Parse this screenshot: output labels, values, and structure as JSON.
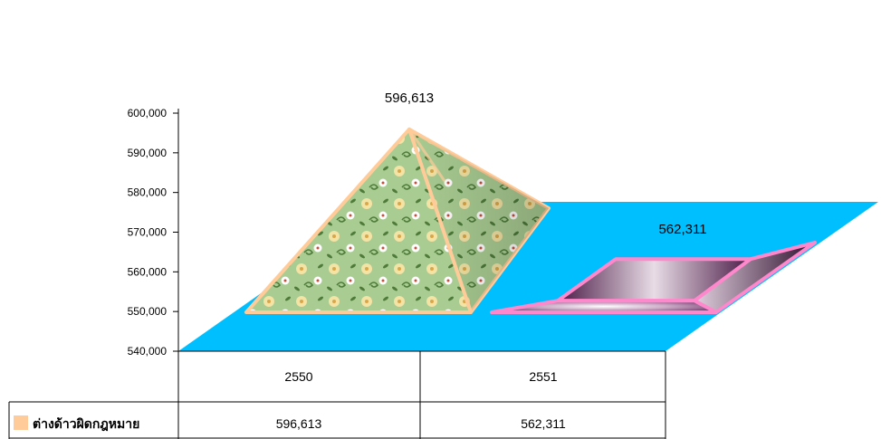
{
  "chart_data": {
    "type": "bar",
    "title": "",
    "xlabel": "",
    "ylabel": "",
    "categories": [
      "2550",
      "2551"
    ],
    "series": [
      {
        "name": "ต่างด้าวผิดกฎหมาย",
        "values": [
          596613,
          562311
        ]
      }
    ],
    "value_labels": [
      "596,613",
      "562,311"
    ],
    "table_values": [
      "596,613",
      "562,311"
    ],
    "ylim": [
      540000,
      600000
    ],
    "yticks": [
      540000,
      550000,
      560000,
      570000,
      580000,
      590000,
      600000
    ],
    "ytick_labels": [
      "540,000",
      "550,000",
      "560,000",
      "570,000",
      "580,000",
      "590,000",
      "600,000"
    ],
    "legend": {
      "placement": "bottom-left-in-table",
      "color": "#FFCC99"
    },
    "grid": false,
    "colors": {
      "floor": "#00BFFF",
      "pyramid_fill": "#A9CC92",
      "pyramid_stroke": "#FFCC99",
      "box_fill": "#7A3A74",
      "box_stroke": "#FF88CC"
    },
    "shapes": [
      "pyramid",
      "truncated-box"
    ]
  }
}
